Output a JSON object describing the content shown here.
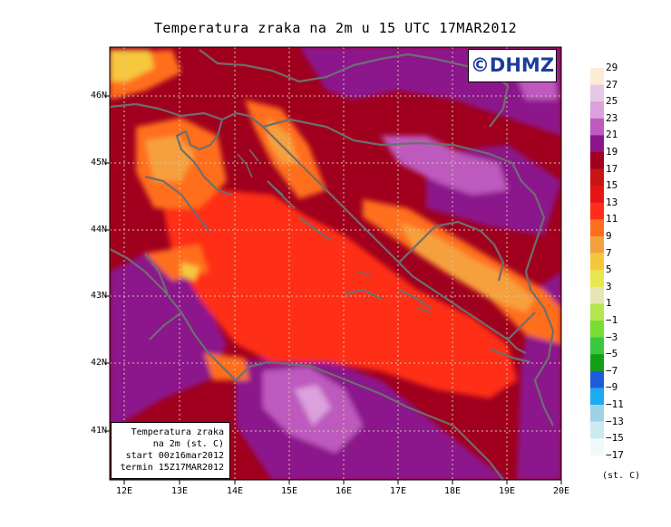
{
  "title": "Temperatura zraka na 2m u 15 UTC 17MAR2012",
  "logo": "©DHMZ",
  "info_box": {
    "line1": "Temperatura zraka",
    "line2": "na 2m (st. C)",
    "line3": "start 00z16mar2012",
    "line4": "termin 15Z17MAR2012"
  },
  "lat_labels": [
    "46N",
    "45N",
    "44N",
    "43N",
    "42N",
    "41N"
  ],
  "lon_labels": [
    "12E",
    "13E",
    "14E",
    "15E",
    "16E",
    "17E",
    "18E",
    "19E",
    "20E"
  ],
  "colorbar": {
    "unit": "(st. C)",
    "labels": [
      "29",
      "27",
      "25",
      "23",
      "21",
      "19",
      "17",
      "15",
      "13",
      "11",
      "9",
      "7",
      "5",
      "3",
      "1",
      "−1",
      "−3",
      "−5",
      "−7",
      "−9",
      "−11",
      "−13",
      "−15",
      "−17"
    ],
    "colors": [
      "#fbebd7",
      "#e6c8e6",
      "#dca0dc",
      "#be5abe",
      "#8c148c",
      "#a0001e",
      "#c81414",
      "#e61414",
      "#ff2d19",
      "#ff6e1e",
      "#f5a03c",
      "#f5c83c",
      "#e6e650",
      "#e6e6b4",
      "#b4e650",
      "#78dc32",
      "#3cc83c",
      "#14a014",
      "#1e5adc",
      "#1eaaf0",
      "#a0d2e6",
      "#cdeaf0",
      "#f0fafa"
    ]
  },
  "colors": {
    "background_temp": "#a0001e",
    "coastline": "#6e6e6e",
    "gridline": "#d2c8aa"
  }
}
